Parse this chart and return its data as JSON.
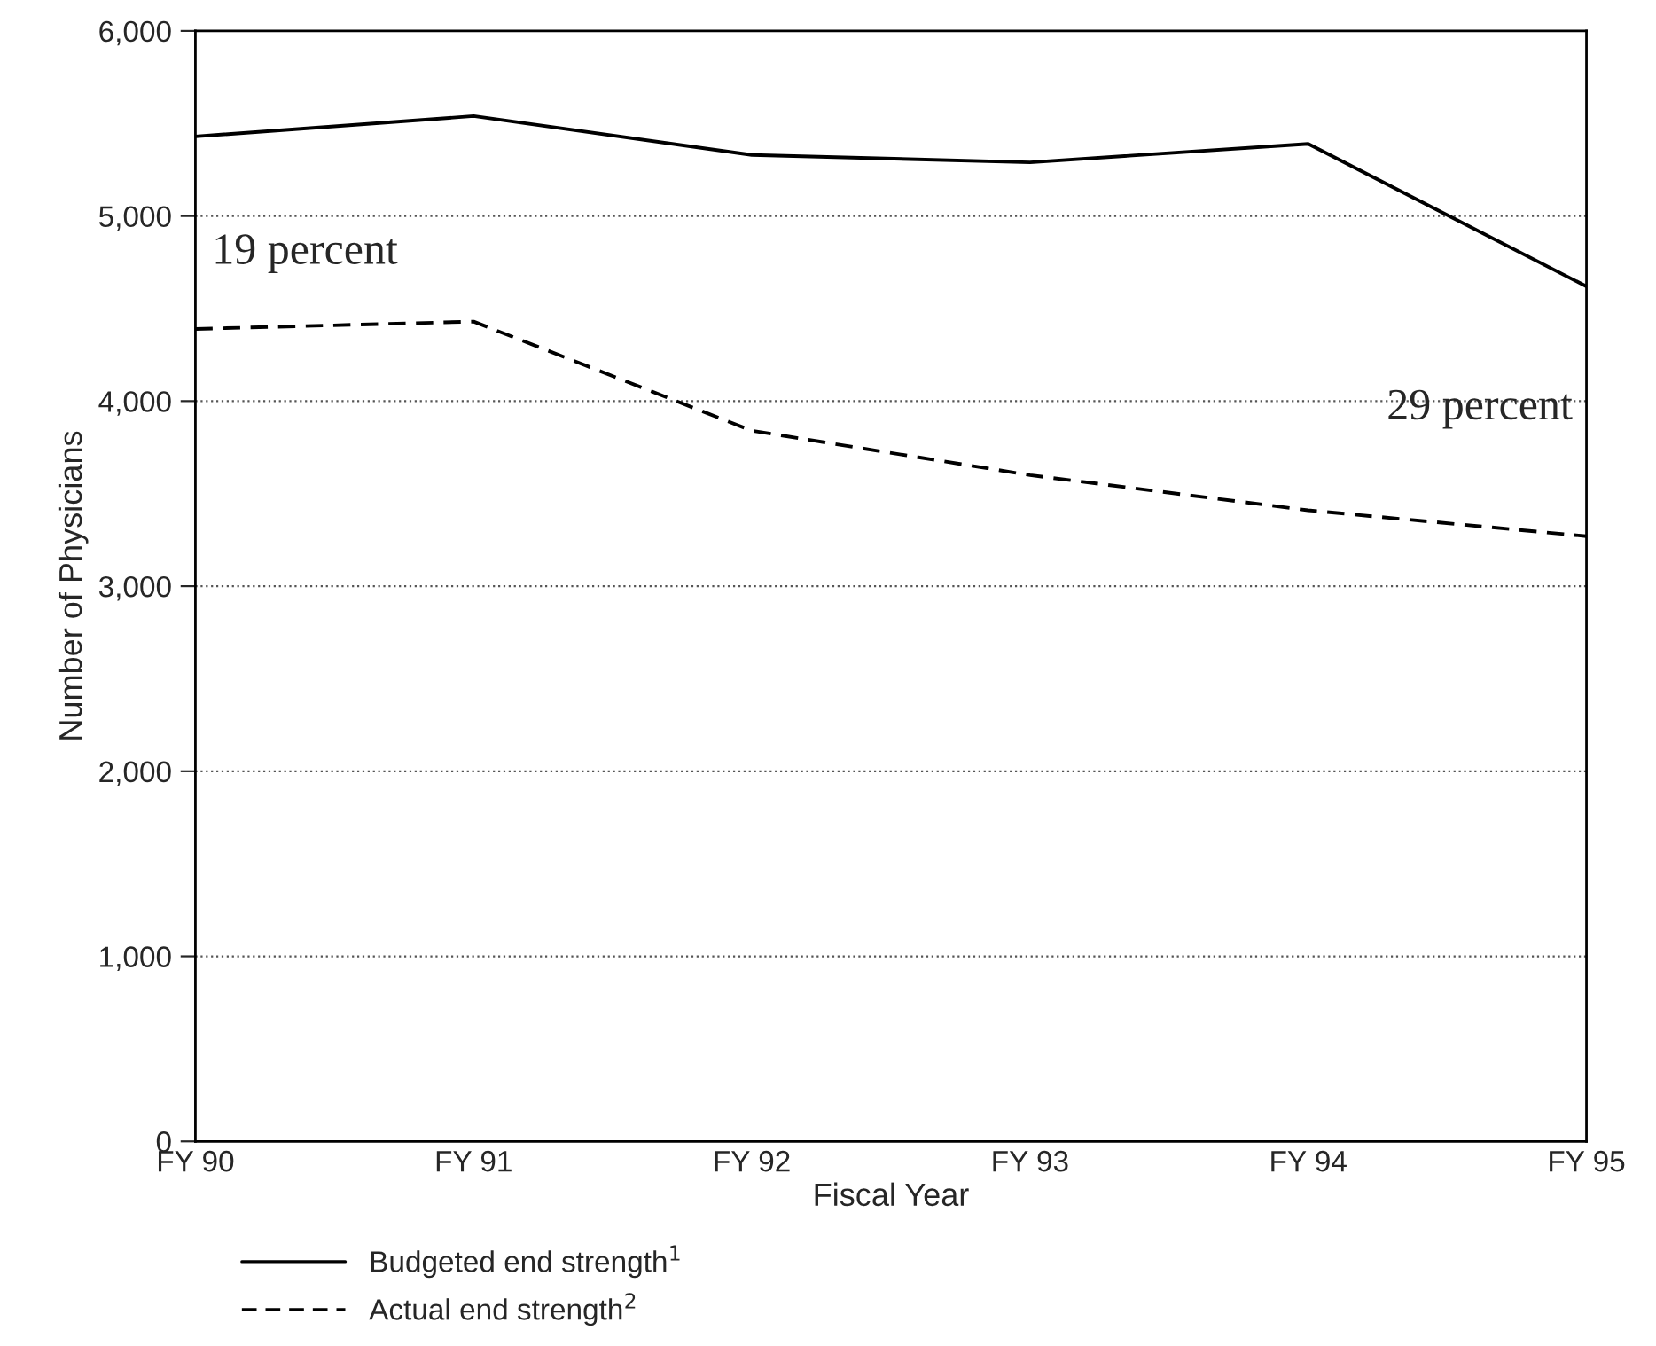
{
  "chart_data": {
    "type": "line",
    "xlabel": "Fiscal Year",
    "ylabel": "Number of Physicians",
    "categories": [
      "FY 90",
      "FY 91",
      "FY 92",
      "FY 93",
      "FY 94",
      "FY 95"
    ],
    "series": [
      {
        "name": "Budgeted end strength$^{1}$",
        "color": "#000000",
        "line_style": "solid",
        "values": [
          5430,
          5540,
          5330,
          5290,
          5390,
          4620
        ]
      },
      {
        "name": "Actual end strength$^{2}$",
        "color": "#000000",
        "line_style": "dashed",
        "values": [
          4390,
          4430,
          3840,
          3600,
          3410,
          3270
        ]
      }
    ],
    "ylim": [
      0,
      6000
    ],
    "yticks": [
      {
        "value": 0,
        "label": "0"
      },
      {
        "value": 1000,
        "label": "1,000"
      },
      {
        "value": 2000,
        "label": "2,000"
      },
      {
        "value": 3000,
        "label": "3,000"
      },
      {
        "value": 4000,
        "label": "4,000"
      },
      {
        "value": 5000,
        "label": "5,000"
      },
      {
        "value": 6000,
        "label": "6,000"
      }
    ],
    "grid": "y",
    "legend": "bottom left",
    "annotations": [
      "19 percent",
      "29 percent"
    ]
  }
}
